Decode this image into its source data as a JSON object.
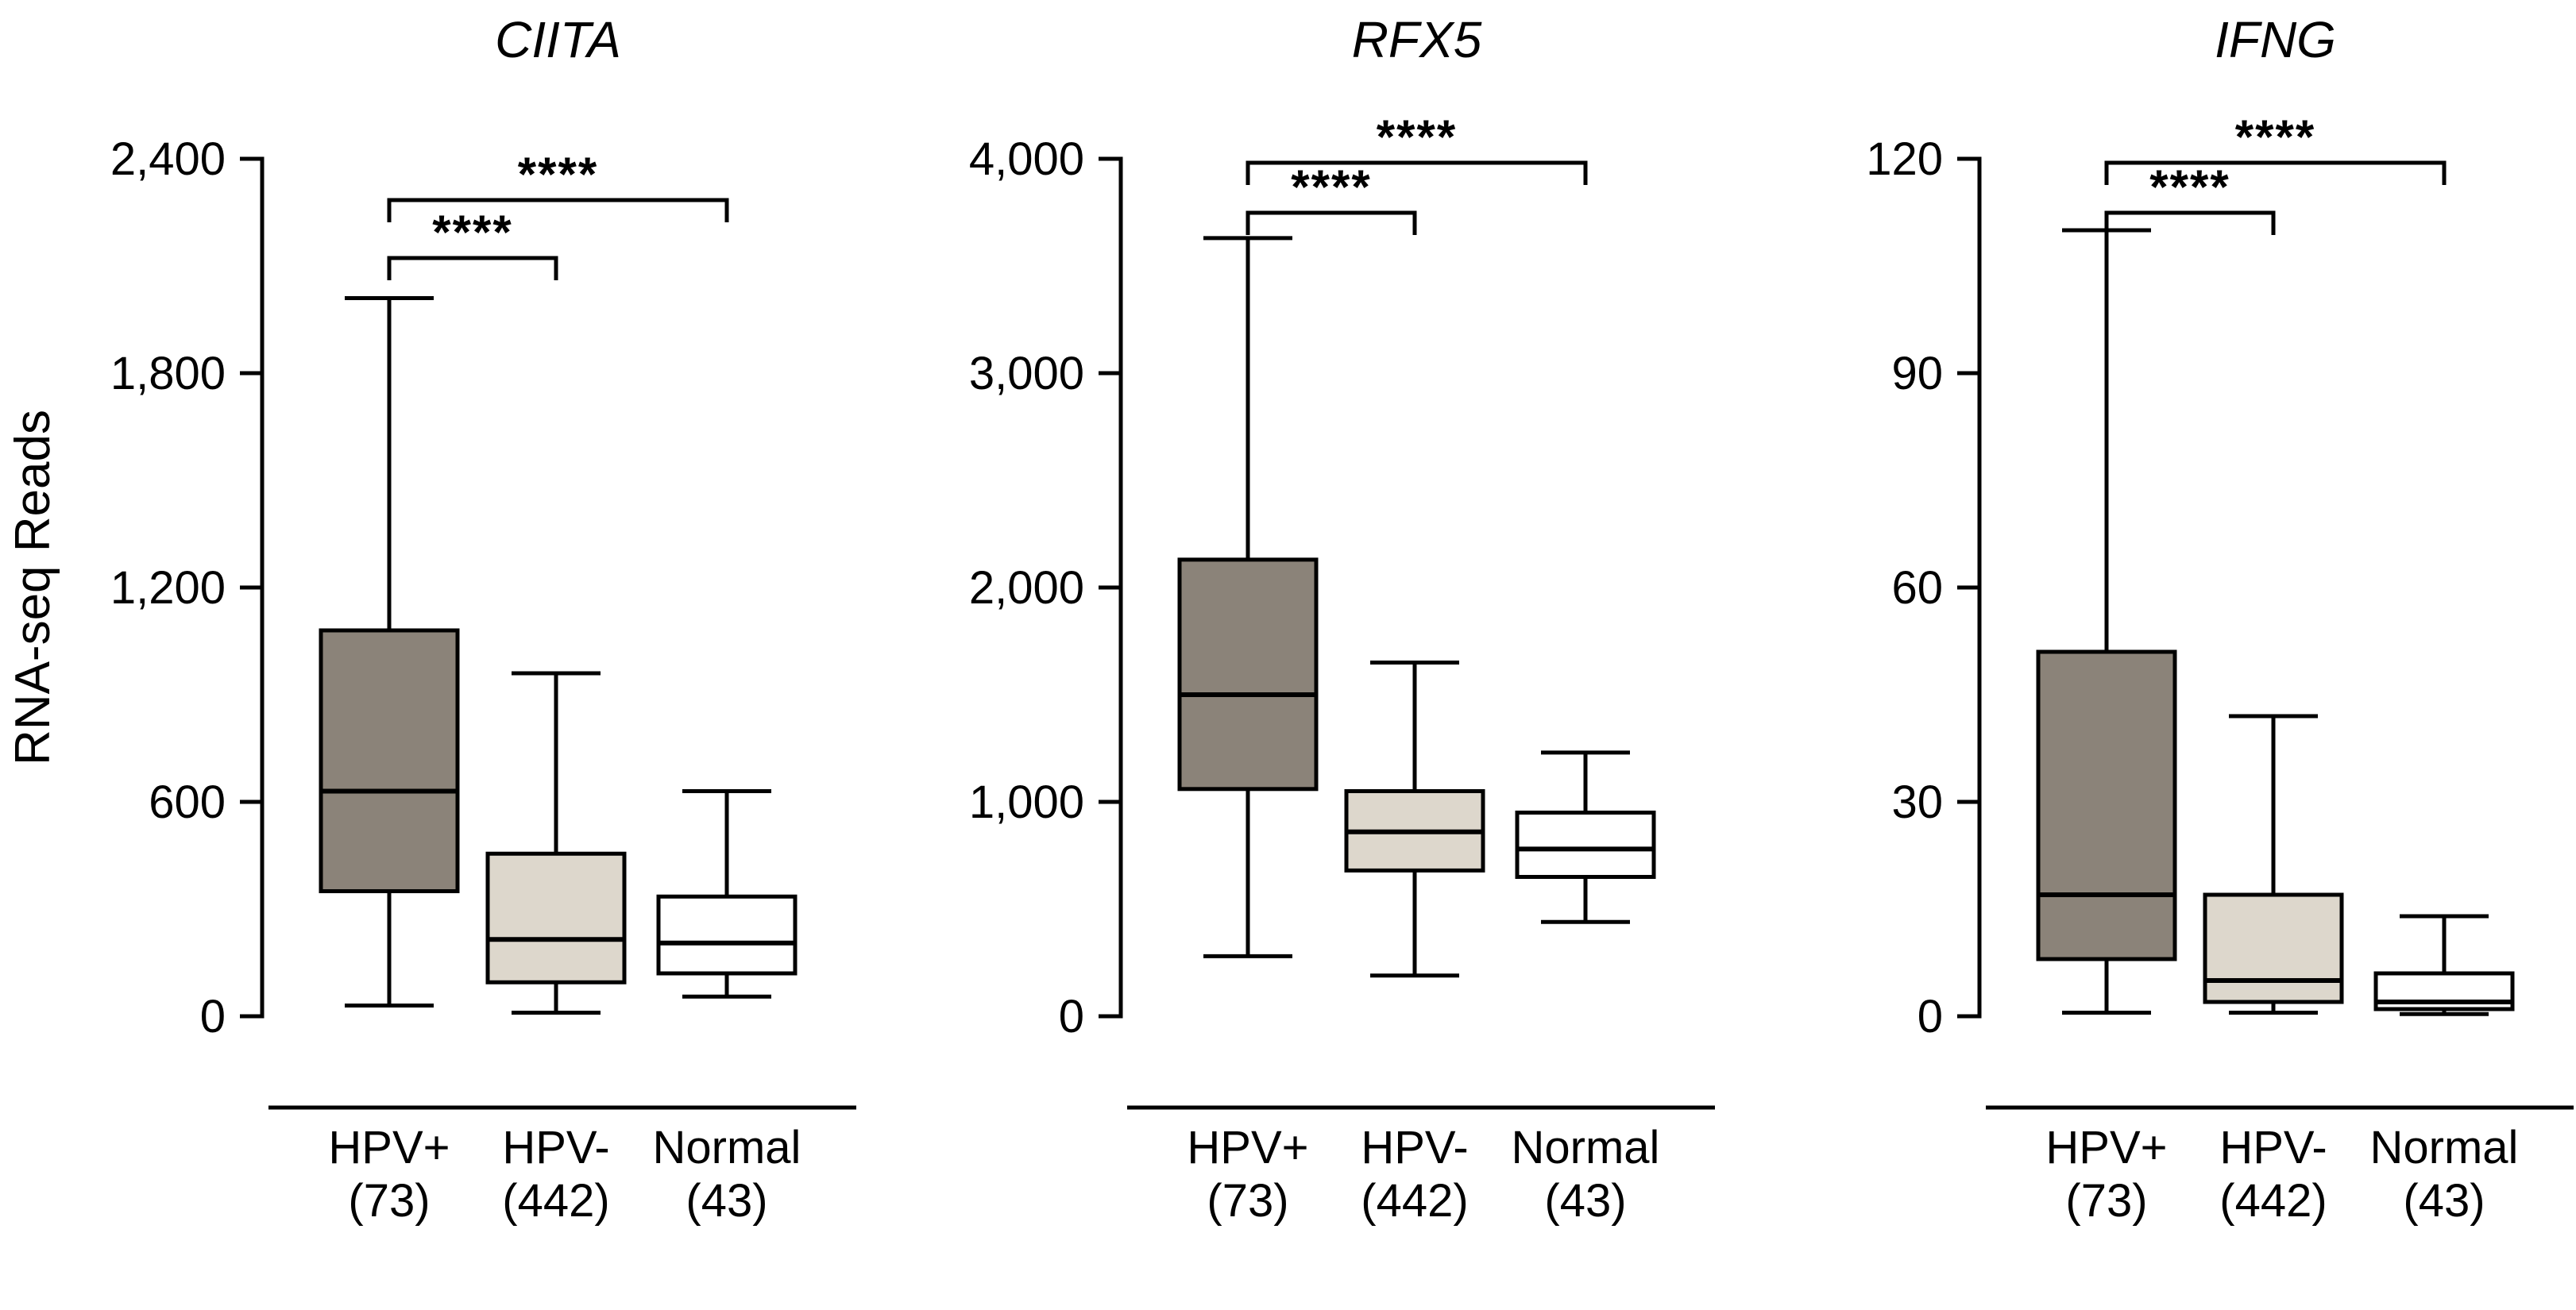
{
  "figure": {
    "ylabel": "RNA-seq Reads",
    "colors": {
      "hpv_pos_fill": "#8B8379",
      "hpv_neg_fill": "#DDD7CC",
      "normal_fill": "#FFFFFF",
      "stroke": "#000000"
    }
  },
  "chart_data": [
    {
      "type": "box",
      "title": "CIITA",
      "ylabel": "RNA-seq Reads",
      "ylim": [
        0,
        2400
      ],
      "grid": false,
      "ytick_values": [
        0,
        600,
        1200,
        1800,
        2400
      ],
      "ytick_labels": [
        "0",
        "600",
        "1,200",
        "1,800",
        "2,400"
      ],
      "categories": [
        "HPV+",
        "HPV-",
        "Normal"
      ],
      "counts": [
        "(73)",
        "(442)",
        "(43)"
      ],
      "boxes": [
        {
          "group": "HPV+",
          "n": 73,
          "whisker_low": 30,
          "q1": 350,
          "median": 630,
          "q3": 1080,
          "whisker_high": 2010,
          "color": "#8B8379"
        },
        {
          "group": "HPV-",
          "n": 442,
          "whisker_low": 10,
          "q1": 95,
          "median": 215,
          "q3": 455,
          "whisker_high": 960,
          "color": "#DDD7CC"
        },
        {
          "group": "Normal",
          "n": 43,
          "whisker_low": 55,
          "q1": 120,
          "median": 205,
          "q3": 335,
          "whisker_high": 630,
          "color": "#FFFFFF"
        }
      ],
      "significance": [
        {
          "from": 0,
          "to": 2,
          "label": "****",
          "y": 252
        },
        {
          "from": 0,
          "to": 1,
          "label": "****",
          "y": 325
        }
      ]
    },
    {
      "type": "box",
      "title": "RFX5",
      "ylabel": "",
      "ylim": [
        0,
        4000
      ],
      "grid": false,
      "ytick_values": [
        0,
        1000,
        2000,
        3000,
        4000
      ],
      "ytick_labels": [
        "0",
        "1,000",
        "2,000",
        "3,000",
        "4,000"
      ],
      "categories": [
        "HPV+",
        "HPV-",
        "Normal"
      ],
      "counts": [
        "(73)",
        "(442)",
        "(43)"
      ],
      "boxes": [
        {
          "group": "HPV+",
          "n": 73,
          "whisker_low": 280,
          "q1": 1060,
          "median": 1500,
          "q3": 2130,
          "whisker_high": 3630,
          "color": "#8B8379"
        },
        {
          "group": "HPV-",
          "n": 442,
          "whisker_low": 190,
          "q1": 680,
          "median": 860,
          "q3": 1050,
          "whisker_high": 1650,
          "color": "#DDD7CC"
        },
        {
          "group": "Normal",
          "n": 43,
          "whisker_low": 440,
          "q1": 650,
          "median": 780,
          "q3": 950,
          "whisker_high": 1230,
          "color": "#FFFFFF"
        }
      ],
      "significance": [
        {
          "from": 0,
          "to": 2,
          "label": "****",
          "y": 205
        },
        {
          "from": 0,
          "to": 1,
          "label": "****",
          "y": 268
        }
      ]
    },
    {
      "type": "box",
      "title": "IFNG",
      "ylabel": "",
      "ylim": [
        0,
        120
      ],
      "grid": false,
      "ytick_values": [
        0,
        30,
        60,
        90,
        120
      ],
      "ytick_labels": [
        "0",
        "30",
        "60",
        "90",
        "120"
      ],
      "categories": [
        "HPV+",
        "HPV-",
        "Normal"
      ],
      "counts": [
        "(73)",
        "(442)",
        "(43)"
      ],
      "boxes": [
        {
          "group": "HPV+",
          "n": 73,
          "whisker_low": 0.5,
          "q1": 8,
          "median": 17,
          "q3": 51,
          "whisker_high": 110,
          "color": "#8B8379"
        },
        {
          "group": "HPV-",
          "n": 442,
          "whisker_low": 0.5,
          "q1": 2,
          "median": 5,
          "q3": 17,
          "whisker_high": 42,
          "color": "#DDD7CC"
        },
        {
          "group": "Normal",
          "n": 43,
          "whisker_low": 0.3,
          "q1": 1,
          "median": 2,
          "q3": 6,
          "whisker_high": 14,
          "color": "#FFFFFF"
        }
      ],
      "significance": [
        {
          "from": 0,
          "to": 2,
          "label": "****",
          "y": 205
        },
        {
          "from": 0,
          "to": 1,
          "label": "****",
          "y": 268
        }
      ]
    }
  ]
}
